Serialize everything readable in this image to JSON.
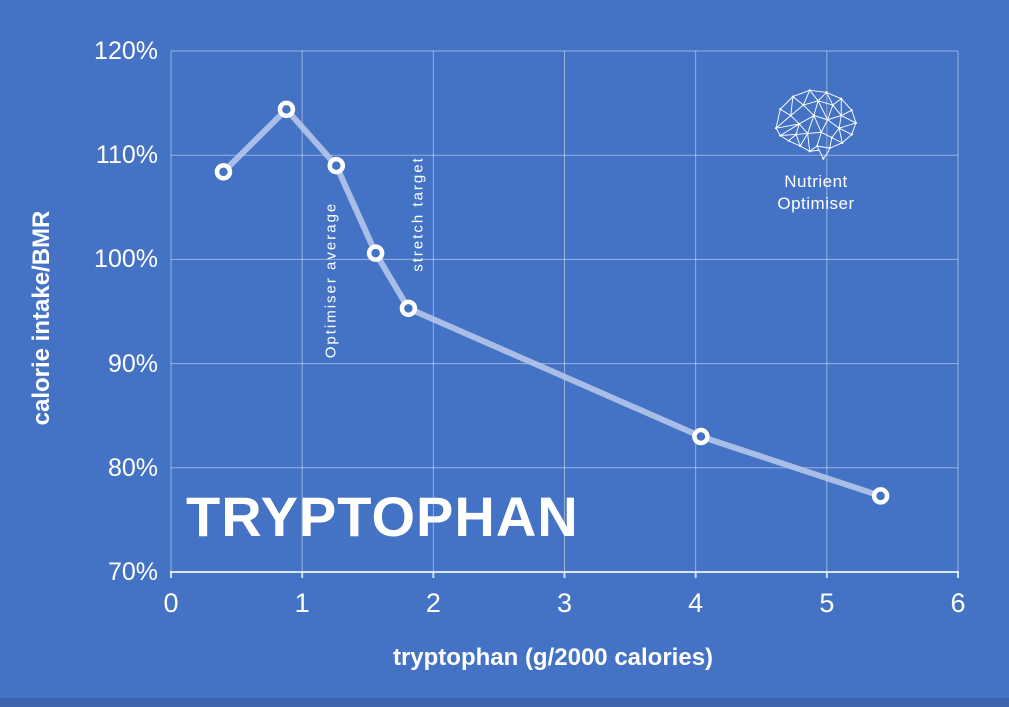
{
  "page": {
    "background_color": "#4472c4",
    "footer_strip_color": "#3e66ae"
  },
  "logo": {
    "icon": "brain-network-icon",
    "line1": "Nutrient",
    "line2": "Optimiser"
  },
  "chart_data": {
    "type": "line",
    "title": "TRYPTOPHAN",
    "xlabel": "tryptophan (g/2000 calories)",
    "ylabel": "calorie intake/BMR",
    "xlim": [
      0,
      6
    ],
    "ylim": [
      70,
      120
    ],
    "grid": true,
    "legend": "none",
    "x_ticks": [
      {
        "label": "0",
        "value": 0
      },
      {
        "label": "1",
        "value": 1
      },
      {
        "label": "2",
        "value": 2
      },
      {
        "label": "3",
        "value": 3
      },
      {
        "label": "4",
        "value": 4
      },
      {
        "label": "5",
        "value": 5
      },
      {
        "label": "6",
        "value": 6
      }
    ],
    "y_ticks": [
      {
        "label": "120%",
        "value": 120
      },
      {
        "label": "110%",
        "value": 110
      },
      {
        "label": "100%",
        "value": 100
      },
      {
        "label": "90%",
        "value": 90
      },
      {
        "label": "80%",
        "value": 80
      },
      {
        "label": "70%",
        "value": 70
      }
    ],
    "series": [
      {
        "name": "calorie intake/BMR vs tryptophan",
        "x": [
          0.4,
          0.88,
          1.26,
          1.56,
          1.81,
          4.04,
          5.41
        ],
        "y": [
          108.4,
          114.4,
          109.0,
          100.6,
          95.3,
          83.0,
          77.3
        ]
      }
    ],
    "annotations": [
      {
        "text": "Optimiser average",
        "x": 1.22,
        "y": 98.0
      },
      {
        "text": "stretch target",
        "x": 1.88,
        "y": 104.4
      }
    ],
    "colors": {
      "line": "#b5c6eb",
      "marker_stroke": "#ffffff",
      "marker_fill": "#4472c4",
      "gridline": "rgba(255,255,255,0.45)",
      "axis_line": "rgba(255,255,255,0.75)",
      "text": "#ffffff"
    }
  }
}
